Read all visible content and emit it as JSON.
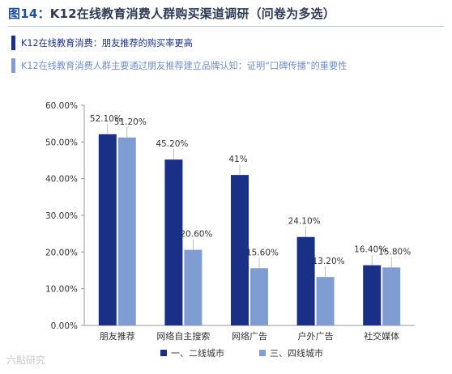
{
  "header": {
    "figure_label": "图14：",
    "title": "K12在线教育消费人群购买渠道调研（问卷为多选）"
  },
  "notes": [
    "K12在线教育消费：朋友推荐的购买率更高",
    "K12在线教育消费人群主要通过朋友推荐建立品牌认知：证明“口碑传播”的重要性"
  ],
  "watermark": "六點研究",
  "colors": {
    "series1": "#1a2f86",
    "series2": "#7f9dd3",
    "title": "#1f4e9c"
  },
  "chart_data": {
    "type": "bar",
    "title": "",
    "xlabel": "",
    "ylabel": "",
    "categories": [
      "朋友推荐",
      "网络自主搜索",
      "网络广告",
      "户外广告",
      "社交媒体"
    ],
    "series": [
      {
        "name": "一、二线城市",
        "values": [
          52.1,
          45.2,
          41,
          24.1,
          16.4
        ],
        "labels": [
          "52.10%",
          "45.20%",
          "41%",
          "24.10%",
          "16.40%"
        ]
      },
      {
        "name": "三、四线城市",
        "values": [
          51.2,
          20.6,
          15.6,
          13.2,
          15.8
        ],
        "labels": [
          "51.20%",
          "20.60%",
          "15.60%",
          "13.20%",
          "15.80%"
        ]
      }
    ],
    "ylim": [
      0,
      60
    ],
    "yticks": [
      "0.00%",
      "10.00%",
      "20.00%",
      "30.00%",
      "40.00%",
      "50.00%",
      "60.00%"
    ],
    "grid": false,
    "legend": "bottom"
  }
}
